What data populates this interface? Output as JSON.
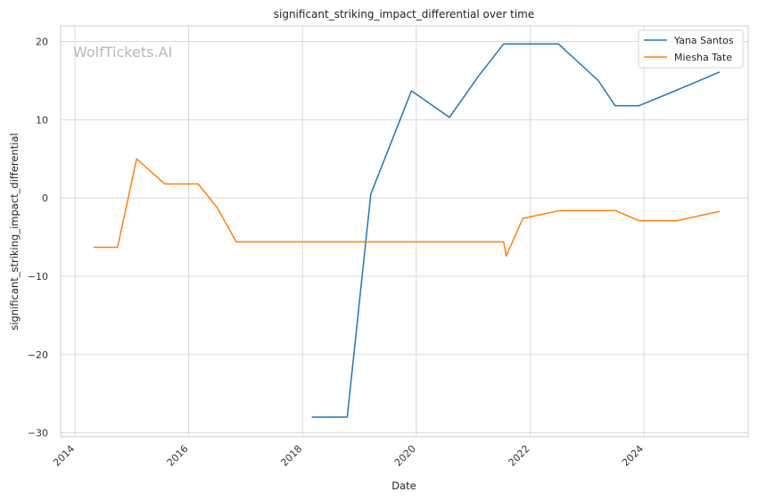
{
  "chart_data": {
    "type": "line",
    "title": "significant_striking_impact_differential over time",
    "xlabel": "Date",
    "ylabel": "significant_striking_impact_differential",
    "watermark": "WolfTickets.AI",
    "xlim": [
      "2013-10-01",
      "2025-11-01"
    ],
    "ylim": [
      -30.5,
      22
    ],
    "x_ticks": [
      {
        "date": "2014-01-01",
        "label": "2014"
      },
      {
        "date": "2016-01-01",
        "label": "2016"
      },
      {
        "date": "2018-01-01",
        "label": "2018"
      },
      {
        "date": "2020-01-01",
        "label": "2020"
      },
      {
        "date": "2022-01-01",
        "label": "2022"
      },
      {
        "date": "2024-01-01",
        "label": "2024"
      }
    ],
    "y_ticks": [
      {
        "value": 20,
        "label": "20"
      },
      {
        "value": 10,
        "label": "10"
      },
      {
        "value": 0,
        "label": "0"
      },
      {
        "value": -10,
        "label": "−10"
      },
      {
        "value": -20,
        "label": "−20"
      },
      {
        "value": -30,
        "label": "−30"
      }
    ],
    "grid": true,
    "legend_position": "top-right",
    "series": [
      {
        "name": "Yana Santos",
        "color": "#1f77b4",
        "points": [
          {
            "x": "2018-03-01",
            "y": -28
          },
          {
            "x": "2018-10-15",
            "y": -28
          },
          {
            "x": "2019-03-15",
            "y": 0.5
          },
          {
            "x": "2019-12-01",
            "y": 13.7
          },
          {
            "x": "2020-08-01",
            "y": 10.3
          },
          {
            "x": "2021-02-01",
            "y": 15.5
          },
          {
            "x": "2021-07-15",
            "y": 19.7
          },
          {
            "x": "2022-07-01",
            "y": 19.7
          },
          {
            "x": "2023-03-15",
            "y": 15.0
          },
          {
            "x": "2023-07-01",
            "y": 11.8
          },
          {
            "x": "2023-12-01",
            "y": 11.8
          },
          {
            "x": "2024-08-01",
            "y": 13.8
          },
          {
            "x": "2025-05-01",
            "y": 16.1
          }
        ]
      },
      {
        "name": "Miesha Tate",
        "color": "#ff7f0e",
        "points": [
          {
            "x": "2014-05-01",
            "y": -6.3
          },
          {
            "x": "2014-10-01",
            "y": -6.3
          },
          {
            "x": "2015-02-01",
            "y": 5.0
          },
          {
            "x": "2015-08-01",
            "y": 1.8
          },
          {
            "x": "2016-03-01",
            "y": 1.8
          },
          {
            "x": "2016-07-01",
            "y": -1.2
          },
          {
            "x": "2016-11-01",
            "y": -5.6
          },
          {
            "x": "2021-07-15",
            "y": -5.6
          },
          {
            "x": "2021-08-01",
            "y": -7.4
          },
          {
            "x": "2021-11-15",
            "y": -2.6
          },
          {
            "x": "2022-07-15",
            "y": -1.6
          },
          {
            "x": "2023-07-01",
            "y": -1.6
          },
          {
            "x": "2023-12-01",
            "y": -2.9
          },
          {
            "x": "2024-08-01",
            "y": -2.9
          },
          {
            "x": "2025-05-01",
            "y": -1.7
          }
        ]
      }
    ]
  }
}
